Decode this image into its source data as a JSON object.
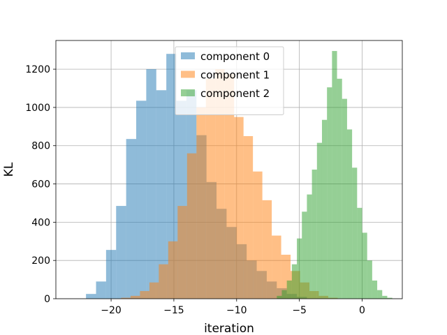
{
  "chart_data": {
    "type": "histogram",
    "xlabel": "iteration",
    "ylabel": "KL",
    "xlim": [
      -24.4,
      3.2
    ],
    "ylim": [
      0,
      1350
    ],
    "xticks": [
      -20,
      -15,
      -10,
      -5,
      0
    ],
    "xtick_labels": [
      "−20",
      "−15",
      "−10",
      "−5",
      "0"
    ],
    "yticks": [
      0,
      200,
      400,
      600,
      800,
      1000,
      1200
    ],
    "grid": true,
    "legend_position": "top-center",
    "series": [
      {
        "name": "component 0",
        "color": "#1f77b4",
        "bin_start": -22.0,
        "bin_width": 0.8,
        "values": [
          25,
          90,
          255,
          485,
          835,
          1035,
          1200,
          1090,
          1280,
          1035,
          1090,
          855,
          610,
          470,
          375,
          285,
          200,
          145,
          90,
          55,
          25,
          10
        ]
      },
      {
        "name": "component 1",
        "color": "#ff7f0e",
        "bin_start": -19.2,
        "bin_width": 0.75,
        "values": [
          5,
          15,
          40,
          85,
          180,
          300,
          485,
          760,
          1000,
          1150,
          1200,
          1175,
          950,
          850,
          665,
          515,
          330,
          230,
          145,
          85,
          40,
          15,
          5
        ]
      },
      {
        "name": "component 2",
        "color": "#2ca02c",
        "bin_start": -6.8,
        "bin_width": 0.4,
        "values": [
          15,
          45,
          95,
          180,
          315,
          455,
          545,
          675,
          815,
          935,
          1105,
          1295,
          1150,
          1045,
          885,
          685,
          475,
          345,
          200,
          95,
          45,
          15,
          5
        ]
      }
    ]
  }
}
